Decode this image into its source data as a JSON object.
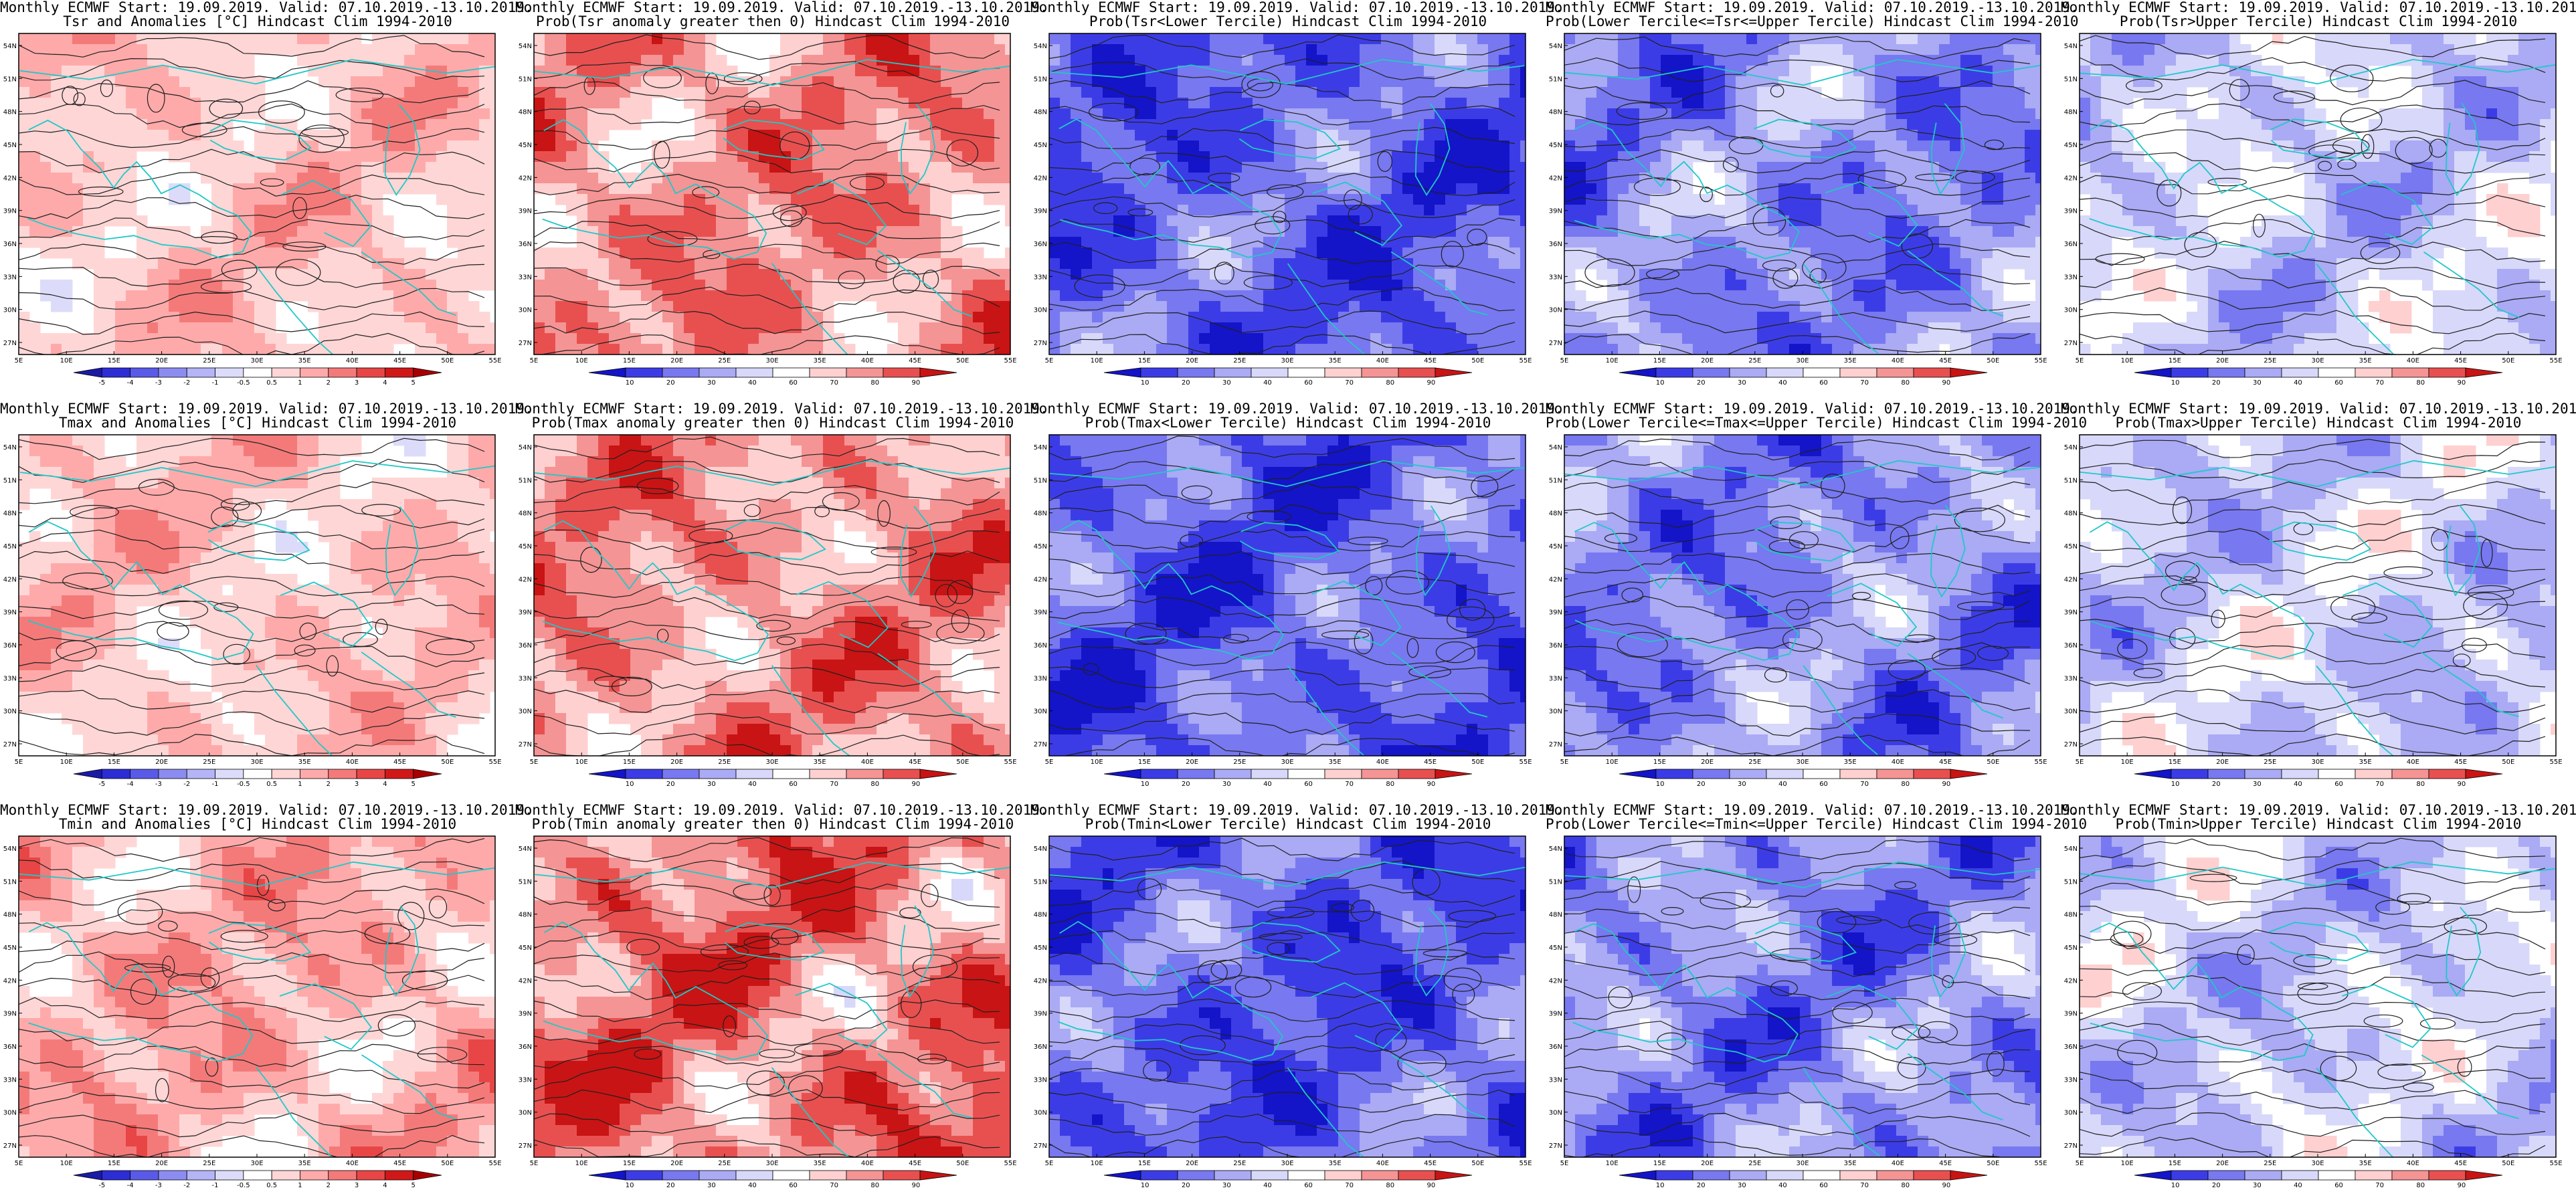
{
  "header_line": "Monthly ECMWF Start: 19.09.2019. Valid: 07.10.2019.-13.10.2019.",
  "lat_labels": [
    "54N",
    "51N",
    "48N",
    "45N",
    "42N",
    "39N",
    "36N",
    "33N",
    "30N",
    "27N"
  ],
  "lon_labels": [
    "5E",
    "10E",
    "15E",
    "20E",
    "25E",
    "30E",
    "35E",
    "40E",
    "45E",
    "50E",
    "55E"
  ],
  "anomaly_scale": [
    "-5",
    "-4",
    "-3",
    "-2",
    "-1",
    "-0.5",
    "0.5",
    "1",
    "2",
    "3",
    "4",
    "5"
  ],
  "prob_scale": [
    "10",
    "20",
    "30",
    "40",
    "60",
    "70",
    "80",
    "90"
  ],
  "colors": {
    "anomaly": [
      "#1a1aa8",
      "#2d2dd6",
      "#5a5ae8",
      "#8c8cf0",
      "#b4b4f6",
      "#dcdcfa",
      "#ffffff",
      "#ffd6d6",
      "#ffaaaa",
      "#f47a7a",
      "#e84646",
      "#d11818",
      "#a80000"
    ],
    "prob": [
      "#1414c8",
      "#3c3ce6",
      "#7878f0",
      "#aaaaf5",
      "#d8d8fa",
      "#ffffff",
      "#ffd0d0",
      "#f59494",
      "#e85050",
      "#c81414"
    ],
    "coast": "#20c8c8",
    "contour": "#202020"
  },
  "rows": [
    {
      "variable": "Tsr",
      "panels": [
        {
          "title2": "Tsr and Anomalies [°C] Hindcast Clim 1994-2010",
          "type": "anomaly",
          "dominant": "warm-light"
        },
        {
          "title2": "Prob(Tsr anomaly greater then 0) Hindcast Clim 1994-2010",
          "type": "prob",
          "dominant": "warm"
        },
        {
          "title2": "Prob(Tsr<Lower Tercile) Hindcast Clim 1994-2010",
          "type": "prob",
          "dominant": "cold-strong"
        },
        {
          "title2": "Prob(Lower Tercile<=Tsr<=Upper Tercile) Hindcast Clim 1994-2010",
          "type": "prob",
          "dominant": "cold"
        },
        {
          "title2": "Prob(Tsr>Upper Tercile) Hindcast Clim 1994-2010",
          "type": "prob",
          "dominant": "cold-light"
        }
      ]
    },
    {
      "variable": "Tmax",
      "panels": [
        {
          "title2": "Tmax and Anomalies [°C] Hindcast Clim 1994-2010",
          "type": "anomaly",
          "dominant": "warm-light"
        },
        {
          "title2": "Prob(Tmax anomaly greater then 0) Hindcast Clim 1994-2010",
          "type": "prob",
          "dominant": "warm"
        },
        {
          "title2": "Prob(Tmax<Lower Tercile) Hindcast Clim 1994-2010",
          "type": "prob",
          "dominant": "cold-strong"
        },
        {
          "title2": "Prob(Lower Tercile<=Tmax<=Upper Tercile) Hindcast Clim 1994-2010",
          "type": "prob",
          "dominant": "cold"
        },
        {
          "title2": "Prob(Tmax>Upper Tercile) Hindcast Clim 1994-2010",
          "type": "prob",
          "dominant": "cold-light"
        }
      ]
    },
    {
      "variable": "Tmin",
      "panels": [
        {
          "title2": "Tmin and Anomalies [°C] Hindcast Clim 1994-2010",
          "type": "anomaly",
          "dominant": "warm"
        },
        {
          "title2": "Prob(Tmin anomaly greater then 0) Hindcast Clim 1994-2010",
          "type": "prob",
          "dominant": "warm-strong"
        },
        {
          "title2": "Prob(Tmin<Lower Tercile) Hindcast Clim 1994-2010",
          "type": "prob",
          "dominant": "cold-strong"
        },
        {
          "title2": "Prob(Lower Tercile<=Tmin<=Upper Tercile) Hindcast Clim 1994-2010",
          "type": "prob",
          "dominant": "cold"
        },
        {
          "title2": "Prob(Tmin>Upper Tercile) Hindcast Clim 1994-2010",
          "type": "prob",
          "dominant": "cold-light"
        }
      ]
    }
  ]
}
